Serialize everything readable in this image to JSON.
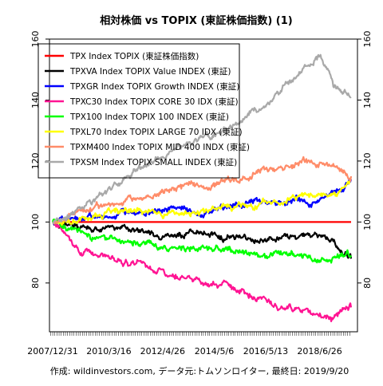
{
  "chart_data": {
    "type": "line",
    "title": "相対株価 vs TOPIX (東証株価指数) (1)",
    "caption": "作成: wildinvestors.com, データ元:トムソンロイター, 最終日: 2019/9/20",
    "xlabel": "",
    "ylabel": "",
    "x_tick_labels": [
      "2007/12/31",
      "2010/3/16",
      "2012/4/26",
      "2014/5/6",
      "2016/5/13",
      "2018/6/26"
    ],
    "x": [
      "2007/12/31",
      "2008/12/31",
      "2010/3/16",
      "2011/4/15",
      "2012/4/26",
      "2013/5/10",
      "2014/5/6",
      "2015/5/15",
      "2016/5/13",
      "2017/6/1",
      "2018/6/26",
      "2019/1/15",
      "2019/9/20"
    ],
    "yticks": [
      80,
      100,
      120,
      140,
      160
    ],
    "ylim": [
      64,
      160
    ],
    "grid": false,
    "legend_position": "top-left",
    "series": [
      {
        "name": "TPX Index TOPIX (東証株価指数)",
        "color": "#ff0000",
        "values": [
          100,
          100,
          100,
          100,
          100,
          100,
          100,
          100,
          100,
          100,
          100,
          100,
          100
        ]
      },
      {
        "name": "TPXVA Index TOPIX Value INDEX (東証)",
        "color": "#000000",
        "values": [
          100,
          98,
          98,
          97.5,
          96,
          97,
          96,
          95,
          94.5,
          95,
          95,
          93,
          88
        ]
      },
      {
        "name": "TPXGR Index TOPIX Growth INDEX (東証)",
        "color": "#0000ff",
        "values": [
          100,
          102,
          102,
          103,
          104,
          104,
          104,
          106,
          107,
          107,
          107,
          109,
          114
        ]
      },
      {
        "name": "TPXC30 Index TOPIX CORE 30 IDX (東証)",
        "color": "#ff1493",
        "values": [
          100,
          91,
          88,
          86,
          83,
          82,
          80,
          77,
          74,
          72,
          70,
          69,
          72
        ]
      },
      {
        "name": "TPX100 Index TOPIX 100 INDEX (東証)",
        "color": "#00ff00",
        "values": [
          100,
          96,
          94,
          93,
          92,
          92,
          91,
          90,
          89,
          89,
          88,
          88,
          89
        ]
      },
      {
        "name": "TPXL70 Index TOPIX LARGE 70 IDX (東証)",
        "color": "#ffff00",
        "values": [
          100,
          100,
          103,
          104,
          103,
          103,
          104,
          105,
          106,
          108,
          108,
          109,
          114
        ]
      },
      {
        "name": "TPXM400 Index TOPIX MID 400 INDX (東証)",
        "color": "#ff8c69",
        "values": [
          100,
          104,
          106,
          107,
          110,
          112,
          113,
          114,
          117,
          119,
          120,
          118,
          115
        ]
      },
      {
        "name": "TPXSM Index TOPIX SMALL INDEX (東証)",
        "color": "#a9a9a9",
        "values": [
          100,
          104,
          110,
          117,
          122,
          126,
          129,
          133,
          138,
          147,
          155,
          145,
          141
        ]
      }
    ]
  }
}
